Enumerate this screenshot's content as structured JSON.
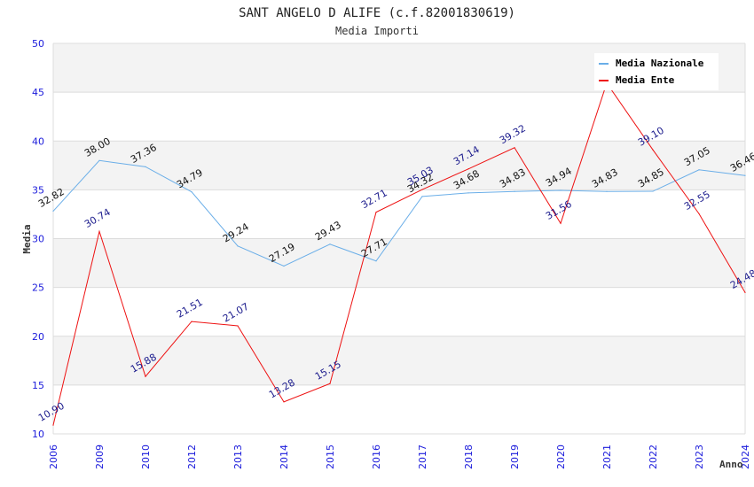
{
  "chart_data": {
    "type": "line",
    "title": "SANT ANGELO D ALIFE (c.f.82001830619)",
    "subtitle": "Media Importi",
    "xlabel": "Anno",
    "ylabel": "Media",
    "ylim": [
      10,
      50
    ],
    "yticks": [
      "10",
      "15",
      "20",
      "25",
      "30",
      "35",
      "40",
      "45",
      "50"
    ],
    "ytick_values": [
      10,
      15,
      20,
      25,
      30,
      35,
      40,
      45,
      50
    ],
    "grid": true,
    "legend_position": "top-right",
    "categories": [
      "2006",
      "2009",
      "2010",
      "2012",
      "2013",
      "2014",
      "2015",
      "2016",
      "2017",
      "2018",
      "2019",
      "2020",
      "2021",
      "2022",
      "2023",
      "2024"
    ],
    "series": [
      {
        "name": "Media Nazionale",
        "color": "#6aaee8",
        "label_color": "#111111",
        "values": [
          32.82,
          38.0,
          37.36,
          34.79,
          29.24,
          27.19,
          29.43,
          27.71,
          34.32,
          34.68,
          34.83,
          34.94,
          34.83,
          34.85,
          37.05,
          36.46
        ],
        "labels": [
          "32.82",
          "38.00",
          "37.36",
          "34.79",
          "29.24",
          "27.19",
          "29.43",
          "27.71",
          "34.32",
          "34.68",
          "34.83",
          "34.94",
          "34.83",
          "34.85",
          "37.05",
          "36.46"
        ]
      },
      {
        "name": "Media Ente",
        "color": "#ee1111",
        "label_color": "#1a1a8c",
        "values": [
          10.9,
          30.74,
          15.88,
          21.51,
          21.07,
          13.28,
          15.15,
          32.71,
          35.03,
          37.14,
          39.32,
          31.56,
          45.93,
          39.1,
          32.55,
          24.48
        ],
        "labels": [
          "10.90",
          "30.74",
          "15.88",
          "21.51",
          "21.07",
          "13.28",
          "15.15",
          "32.71",
          "35.03",
          "37.14",
          "39.32",
          "31.56",
          "",
          "39.10",
          "32.55",
          "24.48"
        ]
      }
    ]
  }
}
